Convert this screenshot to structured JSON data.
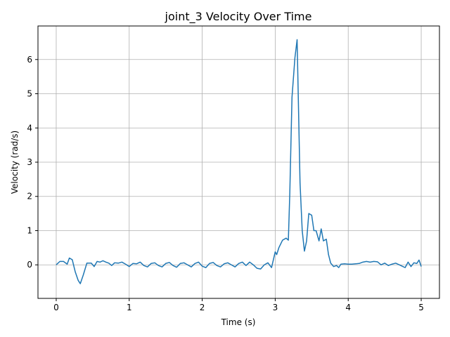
{
  "chart_data": {
    "type": "line",
    "title": "joint_3 Velocity Over Time",
    "xlabel": "Time (s)",
    "ylabel": "Velocity (rad/s)",
    "xlim": [
      -0.25,
      5.25
    ],
    "ylim": [
      -0.98,
      6.98
    ],
    "xticks": [
      0,
      1,
      2,
      3,
      4,
      5
    ],
    "yticks": [
      0,
      1,
      2,
      3,
      4,
      5,
      6
    ],
    "xtick_labels": [
      "0",
      "1",
      "2",
      "3",
      "4",
      "5"
    ],
    "ytick_labels": [
      "0",
      "1",
      "2",
      "3",
      "4",
      "5",
      "6"
    ],
    "grid": true,
    "line_color": "#1f77b4",
    "series": [
      {
        "x": [
          0.0,
          0.05,
          0.1,
          0.15,
          0.18,
          0.22,
          0.26,
          0.3,
          0.33,
          0.37,
          0.42,
          0.48,
          0.52,
          0.56,
          0.6,
          0.64,
          0.68,
          0.72,
          0.76,
          0.8,
          0.85,
          0.9,
          0.95,
          1.0,
          1.05,
          1.1,
          1.15,
          1.2,
          1.25,
          1.3,
          1.35,
          1.4,
          1.45,
          1.5,
          1.55,
          1.6,
          1.65,
          1.7,
          1.75,
          1.8,
          1.85,
          1.9,
          1.95,
          2.0,
          2.05,
          2.1,
          2.15,
          2.2,
          2.25,
          2.3,
          2.35,
          2.4,
          2.45,
          2.5,
          2.55,
          2.6,
          2.65,
          2.7,
          2.75,
          2.8,
          2.85,
          2.9,
          2.95,
          3.0,
          3.02,
          3.05,
          3.1,
          3.15,
          3.18,
          3.2,
          3.23,
          3.27,
          3.3,
          3.34,
          3.37,
          3.4,
          3.43,
          3.46,
          3.5,
          3.53,
          3.56,
          3.6,
          3.63,
          3.66,
          3.7,
          3.73,
          3.76,
          3.8,
          3.84,
          3.87,
          3.9,
          3.95,
          4.0,
          4.05,
          4.1,
          4.15,
          4.2,
          4.25,
          4.3,
          4.35,
          4.4,
          4.45,
          4.5,
          4.55,
          4.6,
          4.65,
          4.7,
          4.75,
          4.78,
          4.82,
          4.86,
          4.9,
          4.94,
          4.97,
          5.0
        ],
        "y": [
          0.0,
          0.1,
          0.1,
          0.02,
          0.2,
          0.15,
          -0.2,
          -0.45,
          -0.55,
          -0.3,
          0.05,
          0.05,
          -0.05,
          0.1,
          0.08,
          0.12,
          0.08,
          0.05,
          -0.02,
          0.06,
          0.05,
          0.08,
          0.02,
          -0.05,
          0.04,
          0.03,
          0.08,
          -0.02,
          -0.06,
          0.04,
          0.06,
          -0.02,
          -0.06,
          0.04,
          0.07,
          -0.02,
          -0.07,
          0.04,
          0.06,
          0.0,
          -0.06,
          0.04,
          0.08,
          -0.04,
          -0.08,
          0.04,
          0.07,
          -0.02,
          -0.06,
          0.03,
          0.06,
          0.0,
          -0.06,
          0.04,
          0.08,
          -0.02,
          0.08,
          0.0,
          -0.1,
          -0.12,
          0.0,
          0.06,
          -0.08,
          0.38,
          0.3,
          0.5,
          0.72,
          0.78,
          0.72,
          2.1,
          4.9,
          6.05,
          6.58,
          2.4,
          1.0,
          0.4,
          0.7,
          1.5,
          1.45,
          1.0,
          1.0,
          0.7,
          1.05,
          0.7,
          0.75,
          0.3,
          0.05,
          -0.05,
          -0.02,
          -0.08,
          0.02,
          0.03,
          0.02,
          0.02,
          0.03,
          0.04,
          0.08,
          0.1,
          0.08,
          0.1,
          0.09,
          0.0,
          0.05,
          -0.02,
          0.02,
          0.05,
          0.0,
          -0.05,
          -0.08,
          0.08,
          -0.05,
          0.06,
          0.04,
          0.14,
          -0.05
        ]
      }
    ]
  }
}
